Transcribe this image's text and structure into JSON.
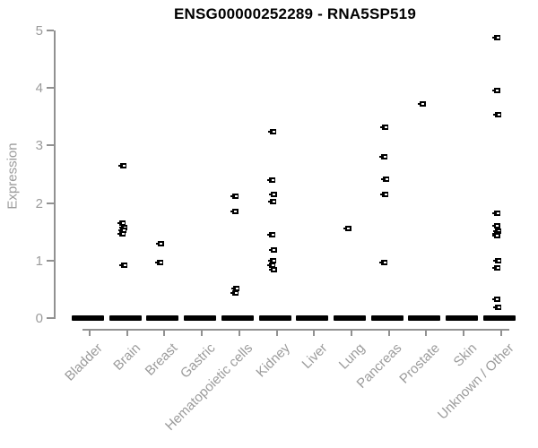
{
  "title": "ENSG00000252289 - RNA5SP519",
  "colors": {
    "point": "#000000",
    "axis": "#919191",
    "tick_label": "#9b9b9b",
    "title": "#000000",
    "background": "#ffffff"
  },
  "chart_data": {
    "type": "scatter",
    "title": "ENSG00000252289 - RNA5SP519",
    "xlabel": "",
    "ylabel": "Expression",
    "ylim": [
      0,
      5
    ],
    "yticks": [
      0,
      1,
      2,
      3,
      4,
      5
    ],
    "grid": false,
    "legend": null,
    "marker": "small-black-square-with-white-dash",
    "categories": [
      "Bladder",
      "Brain",
      "Breast",
      "Gastric",
      "Hematopoietic cells",
      "Kidney",
      "Liver",
      "Lung",
      "Pancreas",
      "Prostate",
      "Skin",
      "Unknown / Other"
    ],
    "zero_band_all_categories": true,
    "series": [
      {
        "name": "Expression",
        "points_by_category": {
          "Bladder": [],
          "Brain": [
            2.65,
            1.65,
            1.58,
            1.52,
            1.46,
            0.92
          ],
          "Breast": [
            1.3,
            0.97
          ],
          "Gastric": [],
          "Hematopoietic cells": [
            2.12,
            1.86,
            0.52,
            0.43
          ],
          "Kidney": [
            3.24,
            2.4,
            2.15,
            2.03,
            1.45,
            1.19,
            1.0,
            0.92,
            0.84
          ],
          "Liver": [],
          "Lung": [
            1.55
          ],
          "Pancreas": [
            3.32,
            2.81,
            2.42,
            2.15,
            0.97
          ],
          "Prostate": [
            3.73
          ],
          "Skin": [],
          "Unknown / Other": [
            4.87,
            3.96,
            3.54,
            1.83,
            1.61,
            1.51,
            1.47,
            1.43,
            1.0,
            0.88,
            0.32,
            0.19
          ]
        }
      }
    ]
  }
}
